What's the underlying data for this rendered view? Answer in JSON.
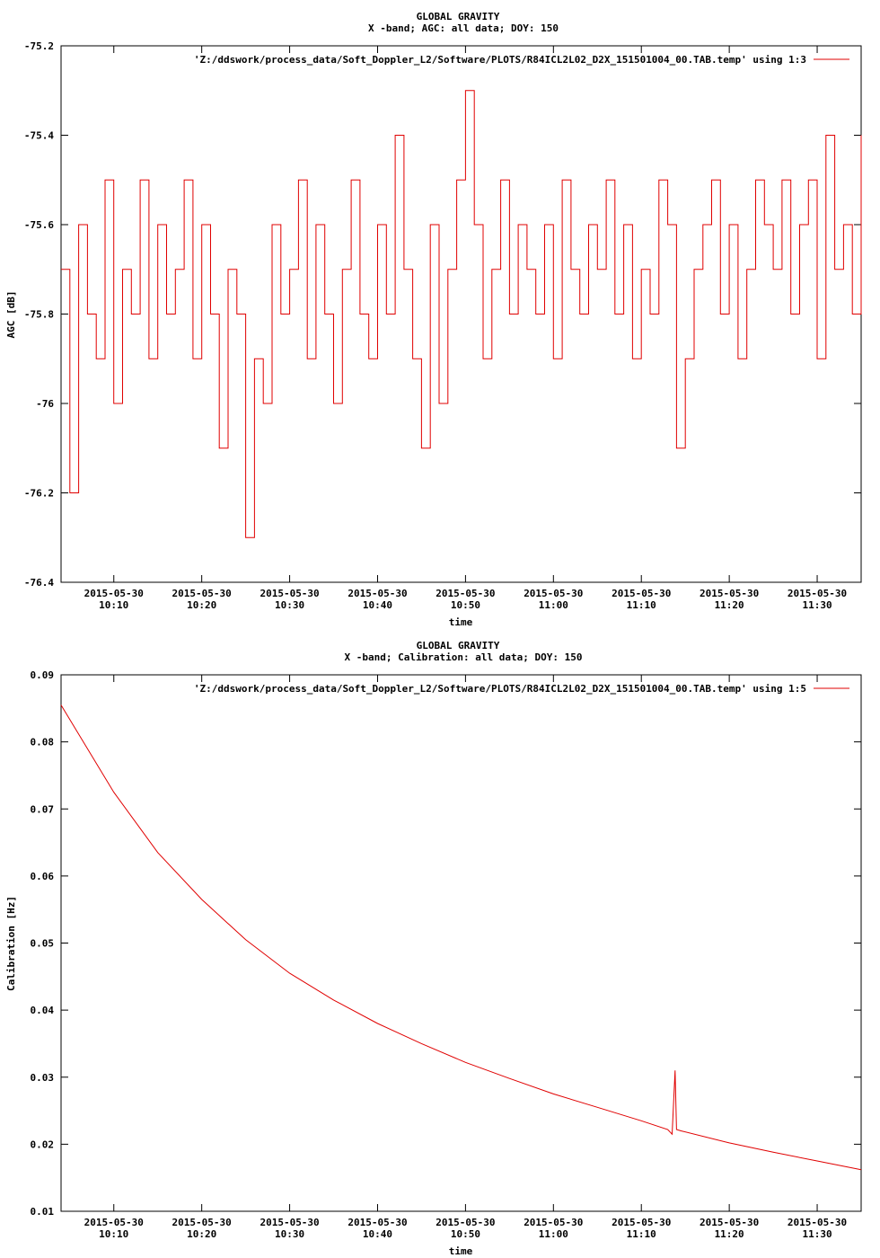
{
  "colors": {
    "series": "#e00000",
    "axis": "#000000",
    "background": "#ffffff"
  },
  "chart_data": [
    {
      "type": "line",
      "title": "GLOBAL GRAVITY",
      "subtitle": "X -band; AGC: all data; DOY: 150",
      "xlabel": "time",
      "ylabel": "AGC [dB]",
      "ylim": [
        -76.4,
        -75.2
      ],
      "yticks": [
        -75.2,
        -75.4,
        -75.6,
        -75.8,
        -76,
        -76.2,
        -76.4
      ],
      "ytick_labels": [
        "-75.2",
        "-75.4",
        "-75.6",
        "-75.8",
        "-76",
        "-76.2",
        "-76.4"
      ],
      "xlim": [
        "10:04",
        "11:35"
      ],
      "xticks": [
        "10:10",
        "10:20",
        "10:30",
        "10:40",
        "10:50",
        "11:00",
        "11:10",
        "11:20",
        "11:30"
      ],
      "xtick_date": "2015-05-30",
      "grid": false,
      "legend_position": "top-right",
      "series": [
        {
          "name": "'Z:/ddswork/process_data/Soft_Doppler_L2/Software/PLOTS/R84ICL2L02_D2X_151501004_00.TAB.temp' using 1:3",
          "x": [
            "10:04",
            "10:05",
            "10:06",
            "10:07",
            "10:08",
            "10:09",
            "10:10",
            "10:11",
            "10:12",
            "10:13",
            "10:14",
            "10:15",
            "10:16",
            "10:17",
            "10:18",
            "10:19",
            "10:20",
            "10:21",
            "10:22",
            "10:23",
            "10:24",
            "10:25",
            "10:26",
            "10:27",
            "10:28",
            "10:29",
            "10:30",
            "10:31",
            "10:32",
            "10:33",
            "10:34",
            "10:35",
            "10:36",
            "10:37",
            "10:38",
            "10:39",
            "10:40",
            "10:41",
            "10:42",
            "10:43",
            "10:44",
            "10:45",
            "10:46",
            "10:47",
            "10:48",
            "10:49",
            "10:50",
            "10:51",
            "10:52",
            "10:53",
            "10:54",
            "10:55",
            "10:56",
            "10:57",
            "10:58",
            "10:59",
            "11:00",
            "11:01",
            "11:02",
            "11:03",
            "11:04",
            "11:05",
            "11:06",
            "11:07",
            "11:08",
            "11:09",
            "11:10",
            "11:11",
            "11:12",
            "11:13",
            "11:14",
            "11:15",
            "11:16",
            "11:17",
            "11:18",
            "11:19",
            "11:20",
            "11:21",
            "11:22",
            "11:23",
            "11:24",
            "11:25",
            "11:26",
            "11:27",
            "11:28",
            "11:29",
            "11:30",
            "11:31",
            "11:32",
            "11:33",
            "11:34",
            "11:35"
          ],
          "y": [
            -75.7,
            -76.2,
            -75.6,
            -75.8,
            -75.9,
            -75.5,
            -76.0,
            -75.7,
            -75.8,
            -75.5,
            -75.9,
            -75.6,
            -75.8,
            -75.7,
            -75.5,
            -75.9,
            -75.6,
            -75.8,
            -76.1,
            -75.7,
            -75.8,
            -76.3,
            -75.9,
            -76.0,
            -75.6,
            -75.8,
            -75.7,
            -75.5,
            -75.9,
            -75.6,
            -75.8,
            -76.0,
            -75.7,
            -75.5,
            -75.8,
            -75.9,
            -75.6,
            -75.8,
            -75.4,
            -75.7,
            -75.9,
            -76.1,
            -75.6,
            -76.0,
            -75.7,
            -75.5,
            -75.3,
            -75.6,
            -75.9,
            -75.7,
            -75.5,
            -75.8,
            -75.6,
            -75.7,
            -75.8,
            -75.6,
            -75.9,
            -75.5,
            -75.7,
            -75.8,
            -75.6,
            -75.7,
            -75.5,
            -75.8,
            -75.6,
            -75.9,
            -75.7,
            -75.8,
            -75.5,
            -75.6,
            -76.1,
            -75.9,
            -75.7,
            -75.6,
            -75.5,
            -75.8,
            -75.6,
            -75.9,
            -75.7,
            -75.5,
            -75.6,
            -75.7,
            -75.5,
            -75.8,
            -75.6,
            -75.5,
            -75.9,
            -75.4,
            -75.7,
            -75.6,
            -75.8,
            -75.4
          ]
        }
      ]
    },
    {
      "type": "line",
      "title": "GLOBAL GRAVITY",
      "subtitle": "X -band; Calibration: all data; DOY: 150",
      "xlabel": "time",
      "ylabel": "Calibration [Hz]",
      "ylim": [
        0.01,
        0.09
      ],
      "yticks": [
        0.09,
        0.08,
        0.07,
        0.06,
        0.05,
        0.04,
        0.03,
        0.02,
        0.01
      ],
      "ytick_labels": [
        "0.09",
        "0.08",
        "0.07",
        "0.06",
        "0.05",
        "0.04",
        "0.03",
        "0.02",
        "0.01"
      ],
      "xlim": [
        "10:04",
        "11:35"
      ],
      "xticks": [
        "10:10",
        "10:20",
        "10:30",
        "10:40",
        "10:50",
        "11:00",
        "11:10",
        "11:20",
        "11:30"
      ],
      "xtick_date": "2015-05-30",
      "grid": false,
      "legend_position": "top-right",
      "series": [
        {
          "name": "'Z:/ddswork/process_data/Soft_Doppler_L2/Software/PLOTS/R84ICL2L02_D2X_151501004_00.TAB.temp' using 1:5",
          "x": [
            "10:04",
            "10:10",
            "10:15",
            "10:20",
            "10:25",
            "10:30",
            "10:35",
            "10:40",
            "10:45",
            "10:50",
            "10:55",
            "11:00",
            "11:05",
            "11:10",
            "11:13",
            "11:13:30",
            "11:13:50",
            "11:14",
            "11:14:30",
            "11:20",
            "11:25",
            "11:30",
            "11:35"
          ],
          "y": [
            0.0855,
            0.0725,
            0.0635,
            0.0565,
            0.0505,
            0.0455,
            0.0415,
            0.038,
            0.035,
            0.0322,
            0.0298,
            0.0275,
            0.0255,
            0.0235,
            0.0222,
            0.0215,
            0.031,
            0.0222,
            0.022,
            0.0202,
            0.0188,
            0.0175,
            0.0162
          ]
        }
      ]
    }
  ]
}
